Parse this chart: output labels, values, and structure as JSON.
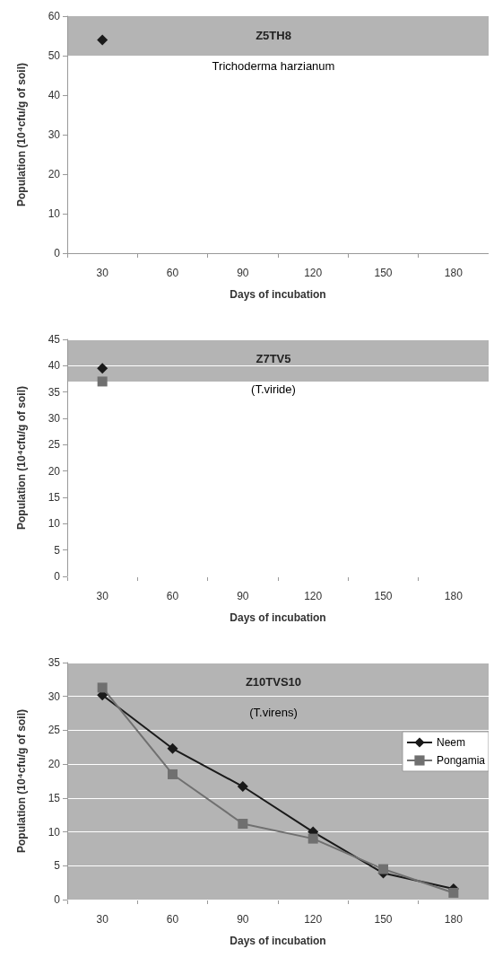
{
  "chart_data": [
    {
      "type": "line",
      "title": "Z5TH8",
      "subtitle": "Trichoderma harzianum",
      "xlabel": "Days of incubation",
      "ylabel": "Population (10⁴cfu/g of soil)",
      "categories": [
        "30",
        "60",
        "90",
        "120",
        "150",
        "180"
      ],
      "ylim": [
        0,
        60
      ],
      "yticks": [
        0,
        10,
        20,
        30,
        40,
        50,
        60
      ],
      "grid": false,
      "legend": false,
      "bands": [
        {
          "axis": "y",
          "from": 50,
          "to": 60,
          "color": "#b4b4b4"
        }
      ],
      "series": [
        {
          "color": "#1a1a1a",
          "marker": "diamond",
          "values": [
            54,
            null,
            null,
            null,
            null,
            null
          ]
        }
      ]
    },
    {
      "type": "line",
      "title": "Z7TV5",
      "subtitle": "(T.viride)",
      "xlabel": "Days of incubation",
      "ylabel": "Population (10⁴cfu/g of soil)",
      "categories": [
        "30",
        "60",
        "90",
        "120",
        "150",
        "180"
      ],
      "ylim": [
        0,
        45
      ],
      "yticks": [
        0,
        5,
        10,
        15,
        20,
        25,
        30,
        35,
        40,
        45
      ],
      "grid": "y",
      "legend": false,
      "bands": [
        {
          "axis": "y",
          "from": 37,
          "to": 45,
          "color": "#b4b4b4"
        }
      ],
      "series": [
        {
          "color": "#1a1a1a",
          "marker": "diamond",
          "values": [
            39.5,
            null,
            null,
            null,
            null,
            null
          ]
        },
        {
          "color": "#707070",
          "marker": "square",
          "values": [
            37,
            null,
            null,
            null,
            null,
            null
          ]
        }
      ]
    },
    {
      "type": "line",
      "title": "Z10TVS10",
      "subtitle": "(T.virens)",
      "xlabel": "Days of incubation",
      "ylabel": "Population (10⁴cfu/g of soil)",
      "categories": [
        "30",
        "60",
        "90",
        "120",
        "150",
        "180"
      ],
      "ylim": [
        0,
        35
      ],
      "yticks": [
        0,
        5,
        10,
        15,
        20,
        25,
        30,
        35
      ],
      "grid": "y",
      "legend": "top right",
      "bands": [
        {
          "axis": "y",
          "from": 0,
          "to": 35,
          "color": "#b4b4b4"
        }
      ],
      "series": [
        {
          "name": "Neem",
          "color": "#1a1a1a",
          "marker": "diamond",
          "values": [
            30.2,
            22.3,
            16.7,
            10,
            3.9,
            1.6
          ]
        },
        {
          "name": "Pongamia",
          "color": "#707070",
          "marker": "square",
          "values": [
            31.3,
            18.5,
            11.2,
            9,
            4.5,
            1
          ]
        }
      ]
    }
  ]
}
